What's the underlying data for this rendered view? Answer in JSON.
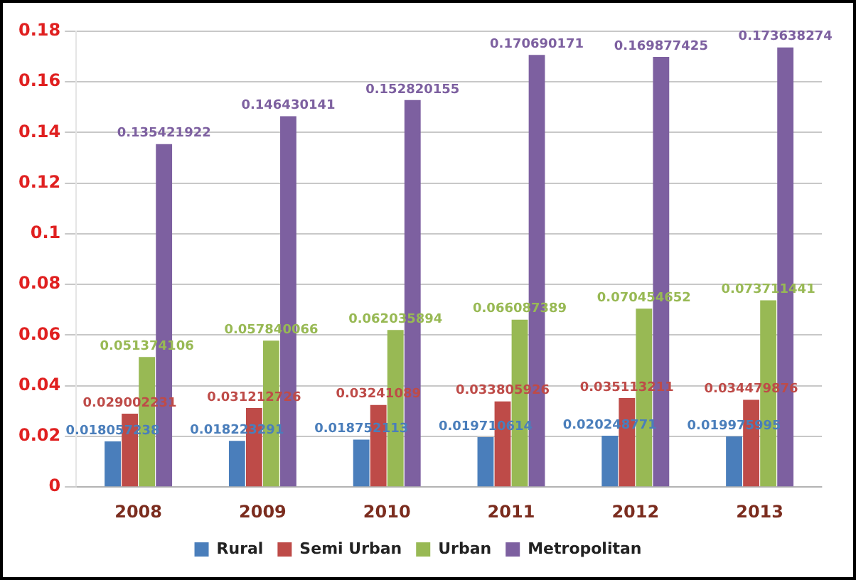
{
  "chart_data": {
    "type": "bar",
    "categories": [
      "2008",
      "2009",
      "2010",
      "2011",
      "2012",
      "2013"
    ],
    "series": [
      {
        "name": "Rural",
        "color": "#4a7ebb",
        "values": [
          0.018057238,
          0.018223291,
          0.018752113,
          0.019710614,
          0.020248771,
          0.019975995
        ]
      },
      {
        "name": "Semi Urban",
        "color": "#be4b48",
        "values": [
          0.029002231,
          0.031212726,
          0.03241089,
          0.033805926,
          0.035113211,
          0.034479876
        ]
      },
      {
        "name": "Urban",
        "color": "#98b954",
        "values": [
          0.051374106,
          0.057840066,
          0.062035894,
          0.066087389,
          0.070454652,
          0.073711441
        ]
      },
      {
        "name": "Metropolitan",
        "color": "#7d60a0",
        "values": [
          0.135421922,
          0.146430141,
          0.152820155,
          0.170690171,
          0.169877425,
          0.173638274
        ]
      }
    ],
    "ylim": [
      0,
      0.18
    ],
    "yticks": [
      0,
      0.02,
      0.04,
      0.06,
      0.08,
      0.1,
      0.12,
      0.14,
      0.16,
      0.18
    ],
    "grid": "y",
    "legend": "bottom",
    "data_labels": true
  }
}
